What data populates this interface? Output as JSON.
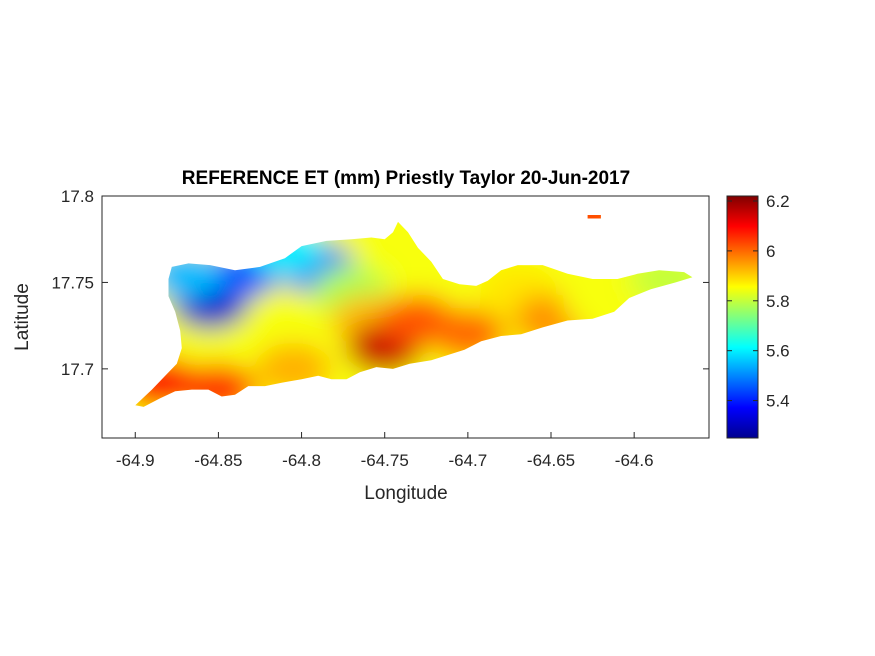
{
  "figure": {
    "title": "REFERENCE ET (mm) Priestly Taylor 20-Jun-2017",
    "xlabel": "Longitude",
    "ylabel": "Latitude",
    "x_ticks": [
      "-64.9",
      "-64.85",
      "-64.8",
      "-64.75",
      "-64.7",
      "-64.65",
      "-64.6"
    ],
    "y_ticks": [
      "17.8",
      "17.75",
      "17.7"
    ],
    "colorbar_ticks": [
      "6.2",
      "6",
      "5.8",
      "5.6",
      "5.4"
    ]
  },
  "chart_data": {
    "type": "heatmap",
    "title": "REFERENCE ET (mm) Priestly Taylor 20-Jun-2017",
    "xlabel": "Longitude",
    "ylabel": "Latitude",
    "xlim": [
      -64.92,
      -64.555
    ],
    "ylim": [
      17.66,
      17.8
    ],
    "x_ticks": [
      -64.9,
      -64.85,
      -64.8,
      -64.75,
      -64.7,
      -64.65,
      -64.6
    ],
    "y_ticks": [
      17.8,
      17.75,
      17.7
    ],
    "colormap": "jet",
    "color_range": [
      5.25,
      6.22
    ],
    "colorbar_ticks": [
      6.2,
      6.0,
      5.8,
      5.6,
      5.4
    ],
    "colorbar_units": "mm",
    "grid": false,
    "fields": [
      {
        "lon": -64.855,
        "lat": 17.738,
        "value": 5.32
      },
      {
        "lon": -64.835,
        "lat": 17.756,
        "value": 5.45
      },
      {
        "lon": -64.79,
        "lat": 17.758,
        "value": 5.47
      },
      {
        "lon": -64.87,
        "lat": 17.755,
        "value": 5.55
      },
      {
        "lon": -64.81,
        "lat": 17.77,
        "value": 5.6
      },
      {
        "lon": -64.77,
        "lat": 17.745,
        "value": 5.78
      },
      {
        "lon": -64.76,
        "lat": 17.728,
        "value": 5.92
      },
      {
        "lon": -64.75,
        "lat": 17.712,
        "value": 6.15
      },
      {
        "lon": -64.73,
        "lat": 17.728,
        "value": 6.02
      },
      {
        "lon": -64.7,
        "lat": 17.72,
        "value": 6.0
      },
      {
        "lon": -64.85,
        "lat": 17.688,
        "value": 6.05
      },
      {
        "lon": -64.885,
        "lat": 17.692,
        "value": 6.1
      },
      {
        "lon": -64.805,
        "lat": 17.7,
        "value": 5.93
      },
      {
        "lon": -64.67,
        "lat": 17.745,
        "value": 5.88
      },
      {
        "lon": -64.65,
        "lat": 17.728,
        "value": 5.96
      },
      {
        "lon": -64.62,
        "lat": 17.738,
        "value": 5.85
      },
      {
        "lon": -64.58,
        "lat": 17.752,
        "value": 5.8
      },
      {
        "lon": -64.625,
        "lat": 17.788,
        "value": 6.05
      }
    ],
    "base_value": 5.85,
    "coastline": [
      [
        -64.9,
        17.679
      ],
      [
        -64.89,
        17.688
      ],
      [
        -64.882,
        17.696
      ],
      [
        -64.875,
        17.703
      ],
      [
        -64.872,
        17.712
      ],
      [
        -64.873,
        17.722
      ],
      [
        -64.876,
        17.733
      ],
      [
        -64.88,
        17.742
      ],
      [
        -64.88,
        17.752
      ],
      [
        -64.878,
        17.759
      ],
      [
        -64.868,
        17.761
      ],
      [
        -64.855,
        17.76
      ],
      [
        -64.84,
        17.757
      ],
      [
        -64.825,
        17.759
      ],
      [
        -64.81,
        17.764
      ],
      [
        -64.8,
        17.771
      ],
      [
        -64.785,
        17.774
      ],
      [
        -64.77,
        17.775
      ],
      [
        -64.758,
        17.776
      ],
      [
        -64.75,
        17.775
      ],
      [
        -64.745,
        17.779
      ],
      [
        -64.742,
        17.785
      ],
      [
        -64.736,
        17.779
      ],
      [
        -64.73,
        17.77
      ],
      [
        -64.722,
        17.762
      ],
      [
        -64.715,
        17.752
      ],
      [
        -64.705,
        17.749
      ],
      [
        -64.695,
        17.748
      ],
      [
        -64.688,
        17.751
      ],
      [
        -64.68,
        17.757
      ],
      [
        -64.67,
        17.76
      ],
      [
        -64.655,
        17.76
      ],
      [
        -64.64,
        17.755
      ],
      [
        -64.625,
        17.752
      ],
      [
        -64.61,
        17.752
      ],
      [
        -64.598,
        17.755
      ],
      [
        -64.585,
        17.757
      ],
      [
        -64.57,
        17.756
      ],
      [
        -64.565,
        17.753
      ],
      [
        -64.575,
        17.75
      ],
      [
        -64.59,
        17.746
      ],
      [
        -64.603,
        17.741
      ],
      [
        -64.612,
        17.733
      ],
      [
        -64.625,
        17.729
      ],
      [
        -64.64,
        17.728
      ],
      [
        -64.655,
        17.724
      ],
      [
        -64.668,
        17.72
      ],
      [
        -64.68,
        17.719
      ],
      [
        -64.692,
        17.716
      ],
      [
        -64.702,
        17.711
      ],
      [
        -64.712,
        17.708
      ],
      [
        -64.722,
        17.705
      ],
      [
        -64.735,
        17.703
      ],
      [
        -64.745,
        17.7
      ],
      [
        -64.755,
        17.701
      ],
      [
        -64.765,
        17.698
      ],
      [
        -64.773,
        17.694
      ],
      [
        -64.782,
        17.694
      ],
      [
        -64.79,
        17.696
      ],
      [
        -64.8,
        17.694
      ],
      [
        -64.812,
        17.692
      ],
      [
        -64.822,
        17.69
      ],
      [
        -64.832,
        17.69
      ],
      [
        -64.84,
        17.685
      ],
      [
        -64.848,
        17.684
      ],
      [
        -64.856,
        17.688
      ],
      [
        -64.866,
        17.688
      ],
      [
        -64.876,
        17.687
      ],
      [
        -64.885,
        17.683
      ],
      [
        -64.895,
        17.678
      ],
      [
        -64.9,
        17.679
      ]
    ],
    "islets": [
      [
        [
          -64.628,
          17.789
        ],
        [
          -64.62,
          17.789
        ],
        [
          -64.62,
          17.787
        ],
        [
          -64.628,
          17.787
        ]
      ]
    ]
  }
}
